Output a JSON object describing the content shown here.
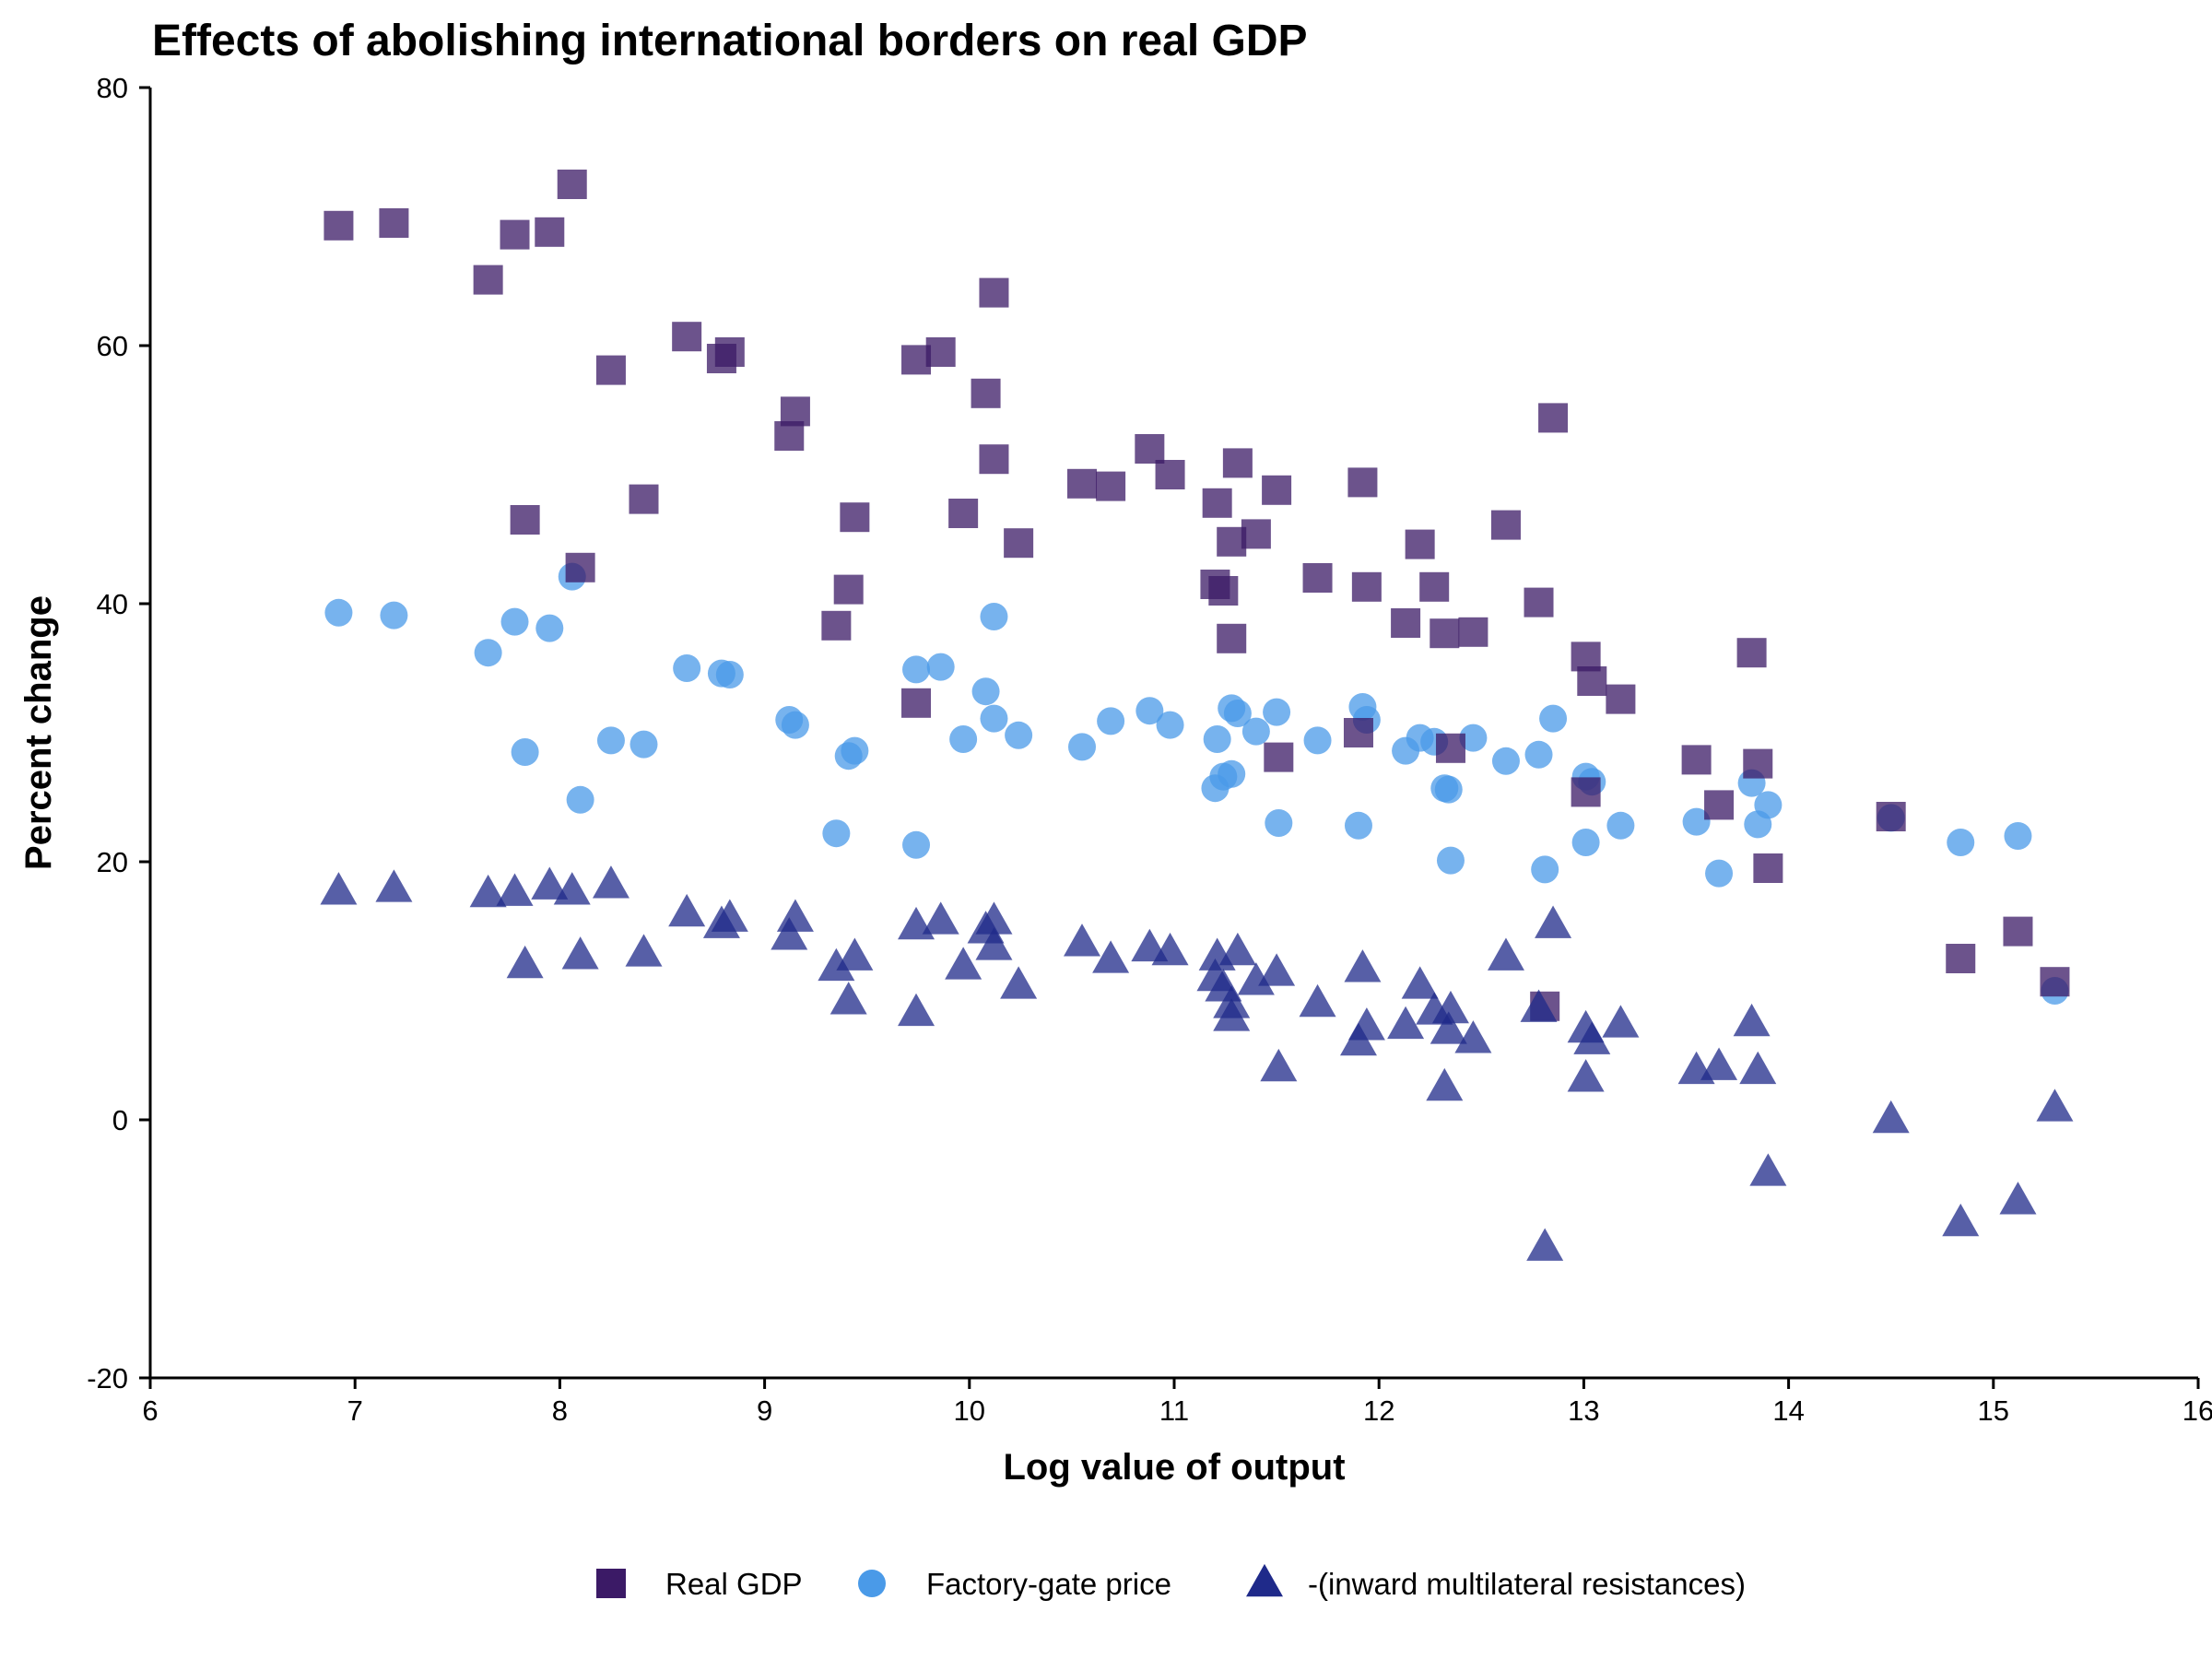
{
  "chart_data": {
    "type": "scatter",
    "title": "Effects of abolishing international borders on real GDP",
    "xlabel": "Log value of output",
    "ylabel": "Percent change",
    "xlim": [
      6,
      16
    ],
    "ylim": [
      -20,
      80
    ],
    "xticks": [
      6,
      7,
      8,
      9,
      10,
      11,
      12,
      13,
      14,
      15,
      16
    ],
    "yticks": [
      -20,
      0,
      20,
      40,
      60,
      80
    ],
    "grid": false,
    "legend": "bottom",
    "series": [
      {
        "name": "Real GDP",
        "marker": "square",
        "color": "#3b1a66",
        "points": [
          [
            6.92,
            69.3
          ],
          [
            7.19,
            69.5
          ],
          [
            7.65,
            65.1
          ],
          [
            7.78,
            68.6
          ],
          [
            7.95,
            68.8
          ],
          [
            8.06,
            72.5
          ],
          [
            7.83,
            46.5
          ],
          [
            8.1,
            42.8
          ],
          [
            8.25,
            58.1
          ],
          [
            8.41,
            48.1
          ],
          [
            8.62,
            60.7
          ],
          [
            8.79,
            59.0
          ],
          [
            8.83,
            59.5
          ],
          [
            9.12,
            53.0
          ],
          [
            9.15,
            54.9
          ],
          [
            9.35,
            38.3
          ],
          [
            9.41,
            41.1
          ],
          [
            9.44,
            46.7
          ],
          [
            9.74,
            58.9
          ],
          [
            9.74,
            32.3
          ],
          [
            9.86,
            59.5
          ],
          [
            9.97,
            47.0
          ],
          [
            10.08,
            56.3
          ],
          [
            10.12,
            64.1
          ],
          [
            10.12,
            51.2
          ],
          [
            10.24,
            44.7
          ],
          [
            10.55,
            49.3
          ],
          [
            10.69,
            49.1
          ],
          [
            10.88,
            52.0
          ],
          [
            10.98,
            50.0
          ],
          [
            11.21,
            47.8
          ],
          [
            11.2,
            41.5
          ],
          [
            11.24,
            41.0
          ],
          [
            11.28,
            44.8
          ],
          [
            11.28,
            37.3
          ],
          [
            11.31,
            50.9
          ],
          [
            11.4,
            45.4
          ],
          [
            11.5,
            48.8
          ],
          [
            11.51,
            28.1
          ],
          [
            11.7,
            42.0
          ],
          [
            11.9,
            30.0
          ],
          [
            11.92,
            49.4
          ],
          [
            11.94,
            41.3
          ],
          [
            12.13,
            38.5
          ],
          [
            12.2,
            44.6
          ],
          [
            12.27,
            41.3
          ],
          [
            12.32,
            37.7
          ],
          [
            12.35,
            28.8
          ],
          [
            12.46,
            37.8
          ],
          [
            12.62,
            46.1
          ],
          [
            12.78,
            40.1
          ],
          [
            12.81,
            8.8
          ],
          [
            12.85,
            54.4
          ],
          [
            13.01,
            35.9
          ],
          [
            13.01,
            25.4
          ],
          [
            13.04,
            34.0
          ],
          [
            13.18,
            32.6
          ],
          [
            13.55,
            27.9
          ],
          [
            13.66,
            24.4
          ],
          [
            13.82,
            36.2
          ],
          [
            13.85,
            27.6
          ],
          [
            13.9,
            19.5
          ],
          [
            14.5,
            23.5
          ],
          [
            14.84,
            12.5
          ],
          [
            15.12,
            14.6
          ],
          [
            15.3,
            10.7
          ]
        ]
      },
      {
        "name": "Factory-gate price",
        "marker": "circle",
        "color": "#4a9ae8",
        "points": [
          [
            6.92,
            39.3
          ],
          [
            7.19,
            39.1
          ],
          [
            7.65,
            36.2
          ],
          [
            7.78,
            38.6
          ],
          [
            7.95,
            38.1
          ],
          [
            8.06,
            42.1
          ],
          [
            7.83,
            28.5
          ],
          [
            8.1,
            24.8
          ],
          [
            8.25,
            29.4
          ],
          [
            8.41,
            29.1
          ],
          [
            8.62,
            35.0
          ],
          [
            8.79,
            34.6
          ],
          [
            8.83,
            34.5
          ],
          [
            9.12,
            31.0
          ],
          [
            9.15,
            30.6
          ],
          [
            9.35,
            22.2
          ],
          [
            9.41,
            28.2
          ],
          [
            9.44,
            28.6
          ],
          [
            9.74,
            34.9
          ],
          [
            9.74,
            21.3
          ],
          [
            9.86,
            35.1
          ],
          [
            9.97,
            29.5
          ],
          [
            10.08,
            33.2
          ],
          [
            10.12,
            39.0
          ],
          [
            10.12,
            31.1
          ],
          [
            10.24,
            29.8
          ],
          [
            10.55,
            28.9
          ],
          [
            10.69,
            30.9
          ],
          [
            10.88,
            31.7
          ],
          [
            10.98,
            30.6
          ],
          [
            11.21,
            29.5
          ],
          [
            11.2,
            25.7
          ],
          [
            11.24,
            26.6
          ],
          [
            11.28,
            26.8
          ],
          [
            11.28,
            31.9
          ],
          [
            11.31,
            31.5
          ],
          [
            11.4,
            30.1
          ],
          [
            11.5,
            31.6
          ],
          [
            11.51,
            23.0
          ],
          [
            11.7,
            29.4
          ],
          [
            11.9,
            22.8
          ],
          [
            11.92,
            32.0
          ],
          [
            11.94,
            31.0
          ],
          [
            12.13,
            28.6
          ],
          [
            12.2,
            29.6
          ],
          [
            12.27,
            29.3
          ],
          [
            12.32,
            25.7
          ],
          [
            12.35,
            20.1
          ],
          [
            12.34,
            25.6
          ],
          [
            12.46,
            29.6
          ],
          [
            12.62,
            27.8
          ],
          [
            12.78,
            28.3
          ],
          [
            12.81,
            19.4
          ],
          [
            12.85,
            31.1
          ],
          [
            13.01,
            26.6
          ],
          [
            13.01,
            21.5
          ],
          [
            13.04,
            26.2
          ],
          [
            13.18,
            22.8
          ],
          [
            13.55,
            23.1
          ],
          [
            13.66,
            19.1
          ],
          [
            13.82,
            26.1
          ],
          [
            13.85,
            22.9
          ],
          [
            13.9,
            24.4
          ],
          [
            14.5,
            23.4
          ],
          [
            14.84,
            21.5
          ],
          [
            15.12,
            22.0
          ],
          [
            15.3,
            10.0
          ]
        ]
      },
      {
        "name": "-(inward multilateral resistances)",
        "marker": "triangle",
        "color": "#1f2a8a",
        "points": [
          [
            6.92,
            17.7
          ],
          [
            7.19,
            17.9
          ],
          [
            7.65,
            17.5
          ],
          [
            7.78,
            17.6
          ],
          [
            7.95,
            18.1
          ],
          [
            8.06,
            17.7
          ],
          [
            7.83,
            12.0
          ],
          [
            8.1,
            12.7
          ],
          [
            8.25,
            18.2
          ],
          [
            8.41,
            12.9
          ],
          [
            8.62,
            16.0
          ],
          [
            8.79,
            15.1
          ],
          [
            8.83,
            15.6
          ],
          [
            9.12,
            14.2
          ],
          [
            9.15,
            15.6
          ],
          [
            9.35,
            11.8
          ],
          [
            9.41,
            9.2
          ],
          [
            9.44,
            12.6
          ],
          [
            9.74,
            15.0
          ],
          [
            9.74,
            8.3
          ],
          [
            9.86,
            15.4
          ],
          [
            9.97,
            11.9
          ],
          [
            10.08,
            14.7
          ],
          [
            10.12,
            15.4
          ],
          [
            10.12,
            13.4
          ],
          [
            10.24,
            10.4
          ],
          [
            10.55,
            13.7
          ],
          [
            10.69,
            12.4
          ],
          [
            10.88,
            13.3
          ],
          [
            10.98,
            13.0
          ],
          [
            11.21,
            12.6
          ],
          [
            11.2,
            11.0
          ],
          [
            11.24,
            10.2
          ],
          [
            11.28,
            8.9
          ],
          [
            11.28,
            7.9
          ],
          [
            11.31,
            13.0
          ],
          [
            11.4,
            10.7
          ],
          [
            11.5,
            11.4
          ],
          [
            11.51,
            4.0
          ],
          [
            11.7,
            9.0
          ],
          [
            11.9,
            6.0
          ],
          [
            11.92,
            11.7
          ],
          [
            11.94,
            7.2
          ],
          [
            12.13,
            7.3
          ],
          [
            12.2,
            10.4
          ],
          [
            12.27,
            8.4
          ],
          [
            12.32,
            2.5
          ],
          [
            12.35,
            8.5
          ],
          [
            12.34,
            6.9
          ],
          [
            12.46,
            6.2
          ],
          [
            12.62,
            12.6
          ],
          [
            12.78,
            8.6
          ],
          [
            12.81,
            -9.9
          ],
          [
            12.85,
            15.1
          ],
          [
            13.01,
            7.0
          ],
          [
            13.01,
            3.2
          ],
          [
            13.04,
            6.1
          ],
          [
            13.18,
            7.4
          ],
          [
            13.55,
            3.8
          ],
          [
            13.66,
            4.1
          ],
          [
            13.82,
            7.5
          ],
          [
            13.85,
            3.8
          ],
          [
            13.9,
            -4.1
          ],
          [
            14.5,
            0.0
          ],
          [
            14.84,
            -8.0
          ],
          [
            15.12,
            -6.3
          ],
          [
            15.3,
            0.9
          ]
        ]
      }
    ]
  }
}
